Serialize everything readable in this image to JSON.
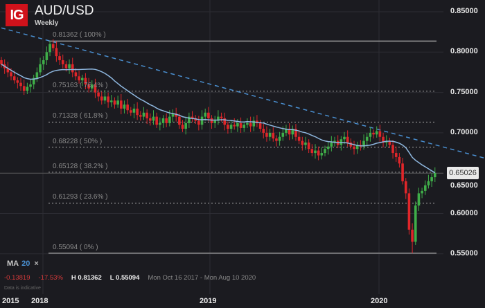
{
  "header": {
    "logo": "IG",
    "title": "AUD/USD",
    "subtitle": "Weekly"
  },
  "indicator": {
    "name": "MA",
    "period": "20",
    "close_icon": "×"
  },
  "stats": {
    "change": "-0.13819",
    "change_pct": "-17.53%",
    "high": "H 0.81362",
    "low": "L 0.55094",
    "range": "Mon Oct 16 2017 - Mon Aug 10 2020",
    "note": "Data is indicative"
  },
  "colors": {
    "background": "#1b1b20",
    "up": "#3fae49",
    "down": "#e0262a",
    "ma": "#8fb8e0",
    "trendline": "#4a8fd0",
    "fib": "#9a9a9a"
  },
  "chart_data": {
    "type": "candlestick",
    "title": "AUD/USD",
    "subtitle": "Weekly",
    "interval": "weekly",
    "start_date": "2017-10-02",
    "ylim": [
      0.545,
      0.86
    ],
    "yticks": [
      "0.85000",
      "0.80000",
      "0.75000",
      "0.70000",
      "0.65000",
      "0.60000",
      "0.55000"
    ],
    "xticks": [
      "2015",
      "2018",
      "2019",
      "2020"
    ],
    "current_price": "0.65026",
    "period_high": 0.81362,
    "period_low": 0.55094,
    "first_open": 0.79,
    "closes": [
      0.785,
      0.78,
      0.775,
      0.77,
      0.765,
      0.762,
      0.758,
      0.752,
      0.757,
      0.76,
      0.768,
      0.775,
      0.785,
      0.79,
      0.8,
      0.81,
      0.805,
      0.795,
      0.79,
      0.785,
      0.78,
      0.785,
      0.775,
      0.77,
      0.765,
      0.768,
      0.76,
      0.755,
      0.76,
      0.75,
      0.745,
      0.74,
      0.745,
      0.738,
      0.74,
      0.735,
      0.74,
      0.73,
      0.735,
      0.728,
      0.725,
      0.73,
      0.722,
      0.72,
      0.725,
      0.718,
      0.715,
      0.72,
      0.71,
      0.712,
      0.718,
      0.712,
      0.72,
      0.724,
      0.72,
      0.71,
      0.705,
      0.712,
      0.72,
      0.718,
      0.715,
      0.71,
      0.72,
      0.725,
      0.718,
      0.712,
      0.715,
      0.72,
      0.718,
      0.71,
      0.705,
      0.71,
      0.708,
      0.712,
      0.706,
      0.71,
      0.712,
      0.708,
      0.715,
      0.712,
      0.705,
      0.7,
      0.695,
      0.7,
      0.693,
      0.69,
      0.695,
      0.7,
      0.705,
      0.698,
      0.705,
      0.695,
      0.69,
      0.685,
      0.688,
      0.68,
      0.675,
      0.678,
      0.672,
      0.675,
      0.68,
      0.683,
      0.688,
      0.69,
      0.685,
      0.692,
      0.695,
      0.688,
      0.683,
      0.68,
      0.685,
      0.683,
      0.69,
      0.695,
      0.7,
      0.698,
      0.702,
      0.695,
      0.688,
      0.69,
      0.685,
      0.675,
      0.67,
      0.662,
      0.64,
      0.625,
      0.58,
      0.565,
      0.61,
      0.625,
      0.628,
      0.635,
      0.64,
      0.645,
      0.65026
    ],
    "moving_average": {
      "type": "MA",
      "period": 20
    },
    "fibonacci": [
      {
        "price": 0.81362,
        "label": "0.81362 ( 100% )"
      },
      {
        "price": 0.75163,
        "label": "0.75163 ( 76.4% )"
      },
      {
        "price": 0.71328,
        "label": "0.71328 ( 61.8% )"
      },
      {
        "price": 0.68228,
        "label": "0.68228 ( 50% )"
      },
      {
        "price": 0.65128,
        "label": "0.65128 ( 38.2% )"
      },
      {
        "price": 0.61293,
        "label": "0.61293 ( 23.6% )"
      },
      {
        "price": 0.55094,
        "label": "0.55094 ( 0% )"
      }
    ],
    "trendline": {
      "style": "dashed",
      "from": {
        "date": "2017-10-02",
        "price": 0.83
      },
      "to": {
        "date": "2020-08-10",
        "price": 0.669
      }
    },
    "grid": true
  }
}
